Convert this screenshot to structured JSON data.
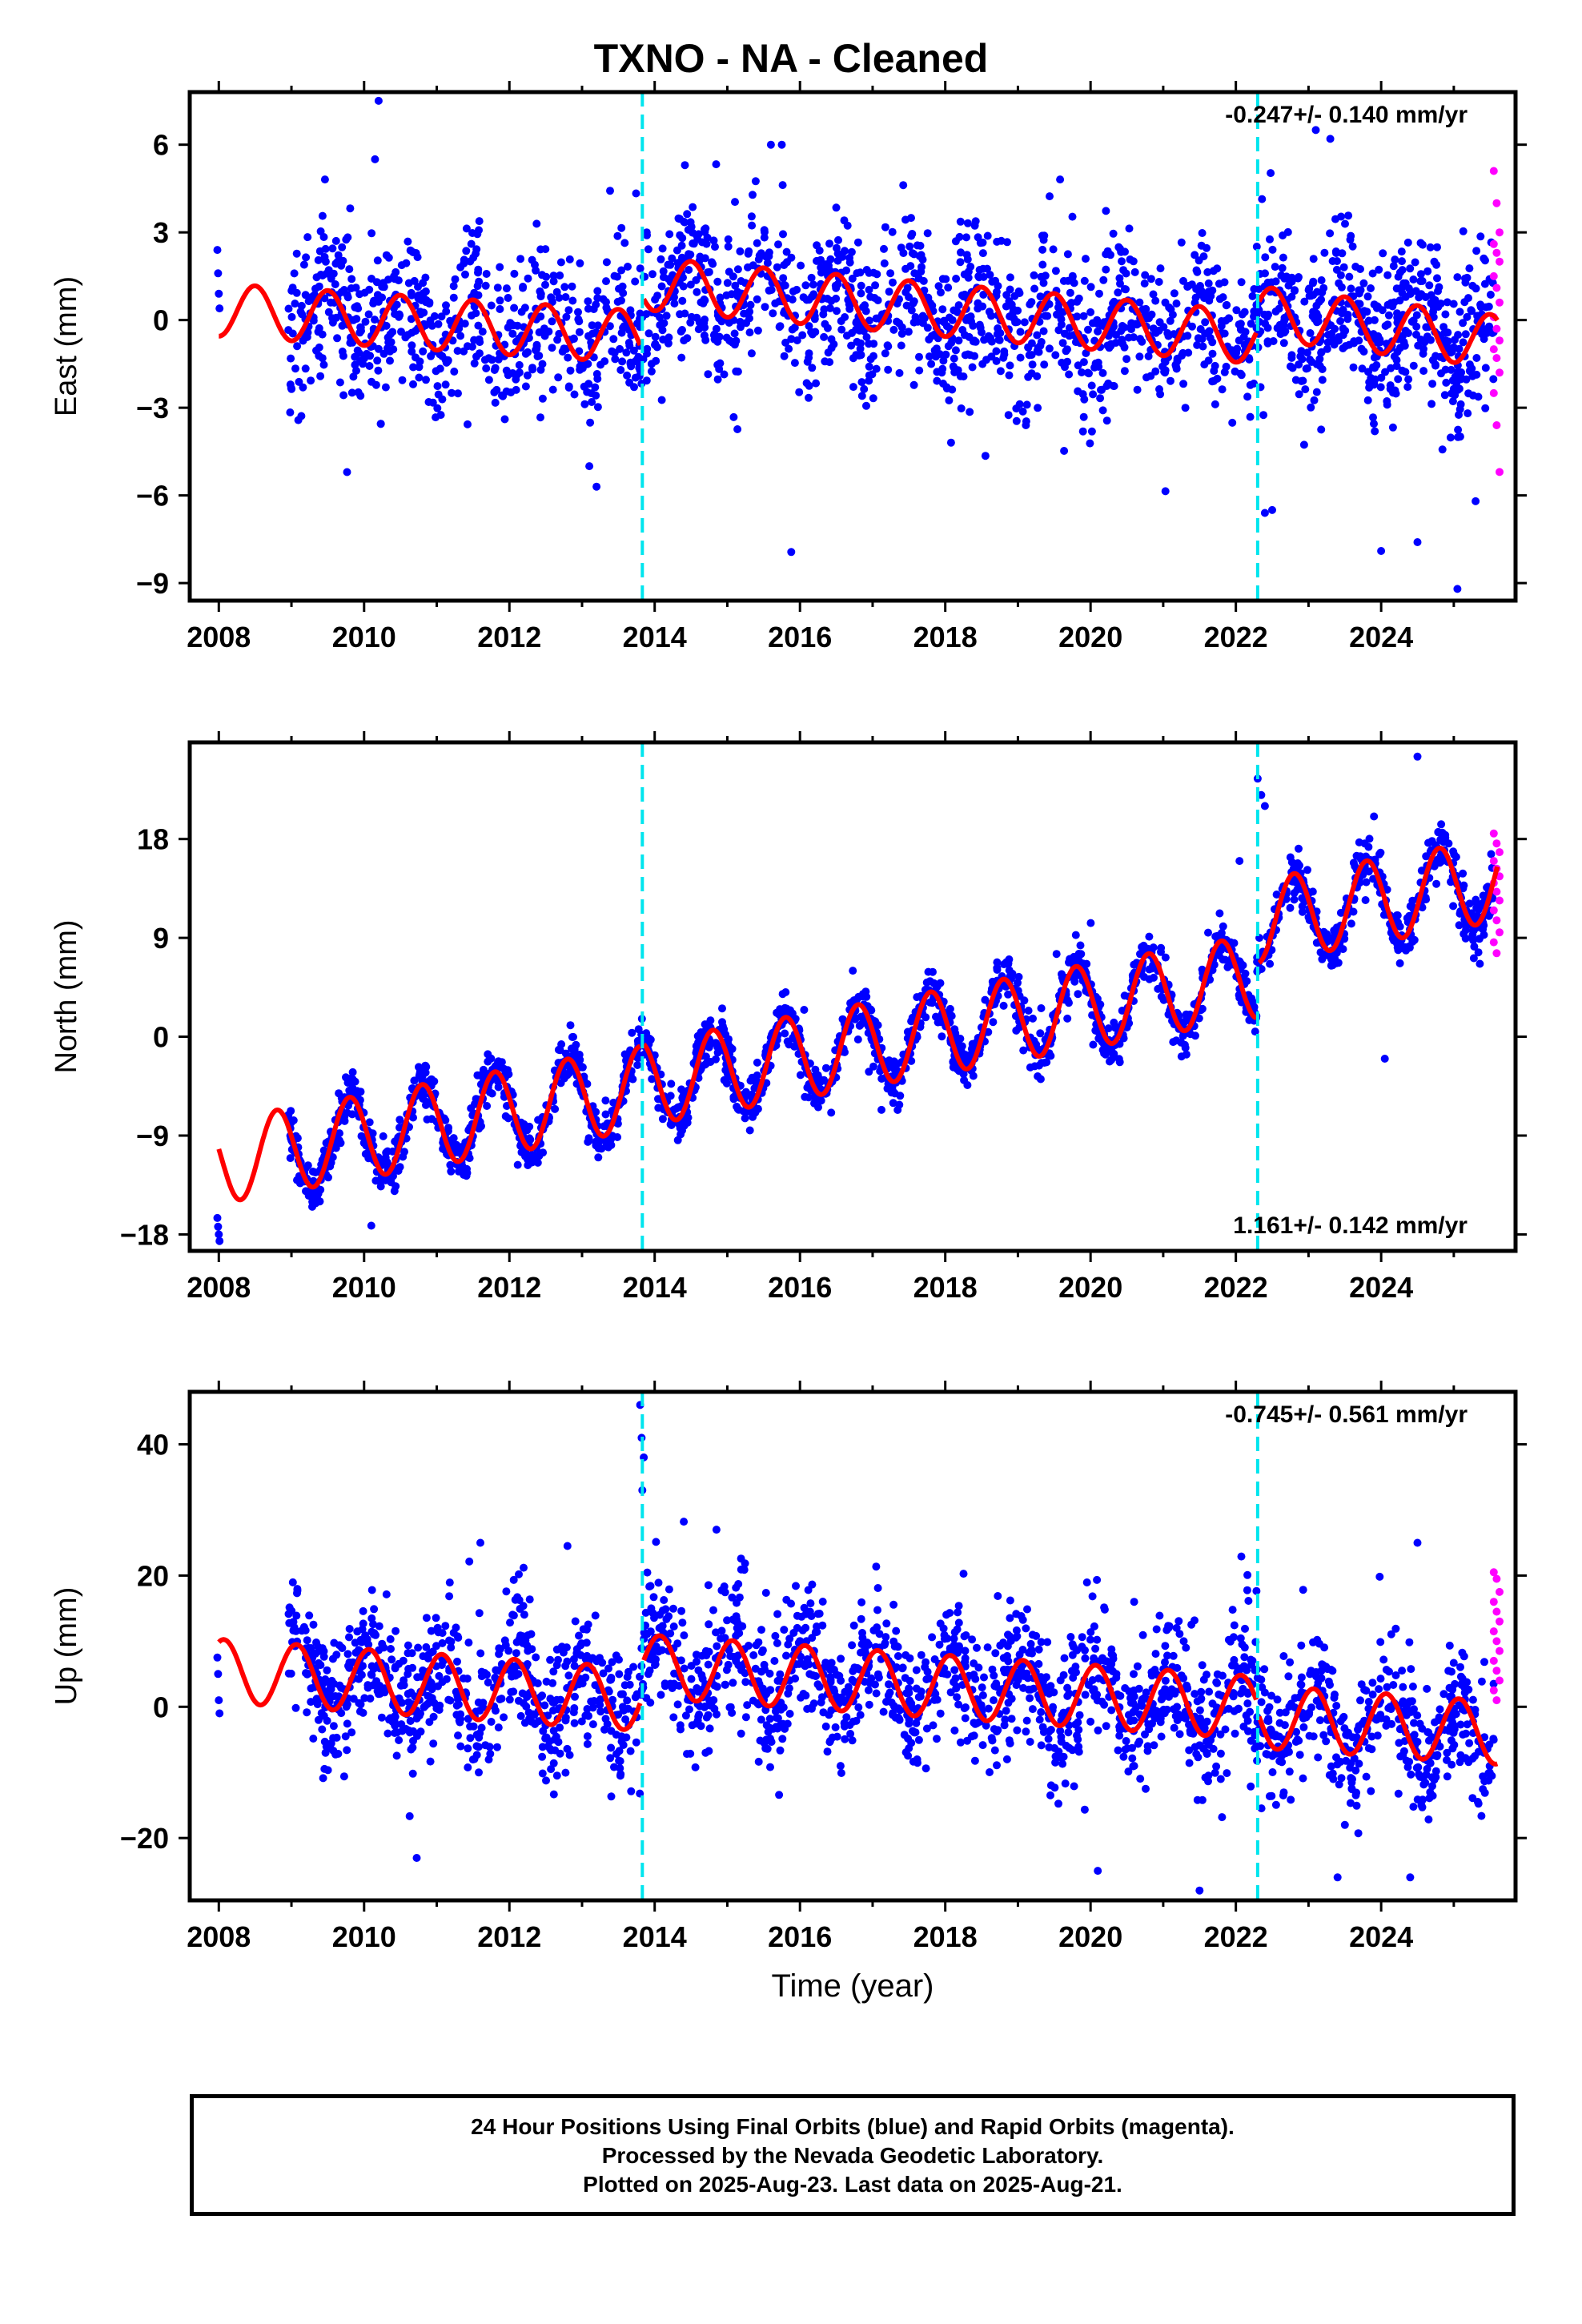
{
  "title": "TXNO  - NA - Cleaned",
  "colors": {
    "final_orbits": "#0000ff",
    "rapid_orbits": "#ff00ff",
    "model_fit": "#ff0000",
    "offset_lines": "#00e5ee"
  },
  "footer": {
    "line1": "24 Hour Positions Using Final Orbits (blue) and Rapid Orbits (magenta).",
    "line2": "Processed by the Nevada Geodetic Laboratory.",
    "line3": "Plotted on 2025-Aug-23. Last data on 2025-Aug-21."
  },
  "chart_data": [
    {
      "type": "scatter",
      "panel": "east",
      "ylabel": "East (mm)",
      "xlabel": "",
      "velocity_label": "-0.247+/- 0.140 mm/yr",
      "velocity_position": "top-right",
      "xlim": [
        2007.6,
        2025.85
      ],
      "ylim": [
        -9.6,
        7.8
      ],
      "xticks": [
        2008,
        2010,
        2012,
        2014,
        2016,
        2018,
        2020,
        2022,
        2024
      ],
      "xtick_labels": [
        "2008",
        "2010",
        "2012",
        "2014",
        "2016",
        "2018",
        "2020",
        "2022",
        "2024"
      ],
      "yticks": [
        -9,
        -6,
        -3,
        0,
        3,
        6
      ],
      "ytick_labels": [
        "−9",
        "−6",
        "−3",
        "0",
        "3",
        "6"
      ],
      "offset_lines": [
        2013.83,
        2022.3
      ],
      "model": {
        "segments": [
          [
            2008.0,
            2013.8,
            0.35,
            -0.16,
            0.9,
            0.25
          ],
          [
            2013.85,
            2022.28,
            1.25,
            -0.22,
            0.9,
            0.25
          ],
          [
            2022.32,
            2025.6,
            0.25,
            -0.3,
            0.9,
            0.25
          ]
        ]
      },
      "final_orbits": {
        "start": 2008.95,
        "end": 2025.55,
        "count": 2200,
        "scatter": 1.3,
        "early_points": [
          [
            2007.98,
            2.4
          ],
          [
            2007.99,
            1.6
          ],
          [
            2008.0,
            0.9
          ],
          [
            2008.01,
            0.4
          ]
        ],
        "extremes": [
          [
            2010.2,
            7.5
          ],
          [
            2010.15,
            5.5
          ],
          [
            2013.2,
            -5.7
          ],
          [
            2013.1,
            -5.0
          ],
          [
            2015.6,
            6.0
          ],
          [
            2015.75,
            6.0
          ],
          [
            2022.4,
            -6.6
          ],
          [
            2022.5,
            -6.5
          ],
          [
            2023.1,
            6.5
          ],
          [
            2023.3,
            6.2
          ],
          [
            2024.0,
            -7.9
          ],
          [
            2024.5,
            -7.6
          ],
          [
            2025.05,
            -9.2
          ],
          [
            2025.3,
            -6.2
          ]
        ]
      },
      "rapid_orbits": {
        "start": 2025.55,
        "end": 2025.63,
        "values": [
          5.1,
          4.0,
          3.0,
          2.6,
          2.3,
          2.0,
          1.5,
          1.1,
          0.6,
          0.1,
          -0.3,
          -0.7,
          -1.0,
          -1.3,
          -1.8,
          -2.5,
          -3.6,
          -5.2
        ]
      }
    },
    {
      "type": "scatter",
      "panel": "north",
      "ylabel": "North (mm)",
      "xlabel": "",
      "velocity_label": "1.161+/- 0.142 mm/yr",
      "velocity_position": "bottom-right",
      "xlim": [
        2007.6,
        2025.85
      ],
      "ylim": [
        -19.5,
        26.8
      ],
      "xticks": [
        2008,
        2010,
        2012,
        2014,
        2016,
        2018,
        2020,
        2022,
        2024
      ],
      "xtick_labels": [
        "2008",
        "2010",
        "2012",
        "2014",
        "2016",
        "2018",
        "2020",
        "2022",
        "2024"
      ],
      "yticks": [
        -18,
        -9,
        0,
        9,
        18
      ],
      "ytick_labels": [
        "−18",
        "−9",
        "0",
        "9",
        "18"
      ],
      "offset_lines": [
        2013.83,
        2022.3
      ],
      "model": {
        "segments": [
          [
            2008.0,
            2013.8,
            -11.4,
            1.16,
            3.8,
            0.55
          ],
          [
            2013.85,
            2022.28,
            -4.3,
            1.16,
            3.8,
            0.55
          ],
          [
            2022.32,
            2025.6,
            10.5,
            1.16,
            3.8,
            0.55
          ]
        ]
      },
      "final_orbits": {
        "start": 2008.95,
        "end": 2025.55,
        "count": 2200,
        "scatter": 1.1,
        "early_points": [
          [
            2007.98,
            -16.5
          ],
          [
            2007.99,
            -17.3
          ],
          [
            2008.0,
            -18.0
          ],
          [
            2008.01,
            -18.6
          ]
        ],
        "extremes": [
          [
            2022.3,
            23.5
          ],
          [
            2022.35,
            22.0
          ],
          [
            2022.4,
            21.0
          ],
          [
            2024.5,
            25.5
          ],
          [
            2024.05,
            -2.0
          ],
          [
            2022.05,
            16.0
          ],
          [
            2010.1,
            -17.2
          ]
        ]
      },
      "rapid_orbits": {
        "start": 2025.55,
        "end": 2025.63,
        "values": [
          18.5,
          17.6,
          16.8,
          16.0,
          15.3,
          14.6,
          14.0,
          13.2,
          12.4,
          11.5,
          10.6,
          9.5,
          8.6,
          7.6
        ]
      }
    },
    {
      "type": "scatter",
      "panel": "up",
      "ylabel": "Up (mm)",
      "xlabel": "Time (year)",
      "velocity_label": "-0.745+/- 0.561 mm/yr",
      "velocity_position": "top-right",
      "xlim": [
        2007.6,
        2025.85
      ],
      "ylim": [
        -29.5,
        48.0
      ],
      "xticks": [
        2008,
        2010,
        2012,
        2014,
        2016,
        2018,
        2020,
        2022,
        2024
      ],
      "xtick_labels": [
        "2008",
        "2010",
        "2012",
        "2014",
        "2016",
        "2018",
        "2020",
        "2022",
        "2024"
      ],
      "yticks": [
        -20,
        0,
        20,
        40
      ],
      "ytick_labels": [
        "−20",
        "0",
        "20",
        "40"
      ],
      "offset_lines": [
        2013.83,
        2022.3
      ],
      "model": {
        "segments": [
          [
            2008.0,
            2013.8,
            5.5,
            -0.75,
            4.8,
            0.82
          ],
          [
            2013.85,
            2022.28,
            6.2,
            -0.75,
            4.8,
            0.82
          ],
          [
            2022.32,
            2025.6,
            -1.5,
            -0.75,
            4.8,
            0.82
          ]
        ]
      },
      "final_orbits": {
        "start": 2008.95,
        "end": 2025.55,
        "count": 2200,
        "scatter": 5.0,
        "early_points": [
          [
            2007.98,
            7.5
          ],
          [
            2007.99,
            5.0
          ],
          [
            2008.0,
            1.0
          ],
          [
            2008.01,
            -1.0
          ]
        ],
        "extremes": [
          [
            2013.8,
            46.0
          ],
          [
            2013.82,
            41.0
          ],
          [
            2013.85,
            38.0
          ],
          [
            2013.83,
            33.0
          ],
          [
            2011.6,
            25.0
          ],
          [
            2012.8,
            24.5
          ],
          [
            2021.5,
            -28.0
          ],
          [
            2020.1,
            -25.0
          ],
          [
            2023.4,
            -26.0
          ],
          [
            2024.4,
            -26.0
          ],
          [
            2024.5,
            25.0
          ],
          [
            2020.6,
            16.0
          ],
          [
            2014.85,
            27.0
          ]
        ]
      },
      "rapid_orbits": {
        "start": 2025.55,
        "end": 2025.63,
        "values": [
          20.5,
          19.5,
          17.5,
          16.0,
          14.5,
          13.0,
          11.5,
          10.0,
          8.5,
          7.0,
          5.5,
          4.0,
          2.5,
          1.0
        ]
      }
    }
  ]
}
